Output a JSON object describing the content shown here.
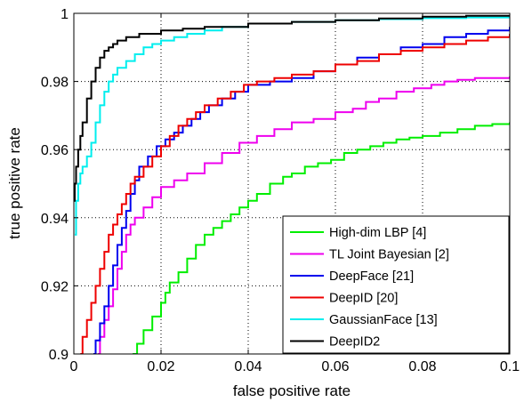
{
  "chart_data": {
    "type": "line",
    "title": "",
    "xlabel": "false positive rate",
    "ylabel": "true positive rate",
    "xlim": [
      0,
      0.1
    ],
    "ylim": [
      0.9,
      1.0
    ],
    "grid": true,
    "grid_style": "dotted",
    "legend_placement": "bottom-right",
    "x_ticks": [
      {
        "value": 0,
        "label": "0"
      },
      {
        "value": 0.02,
        "label": "0.02"
      },
      {
        "value": 0.04,
        "label": "0.04"
      },
      {
        "value": 0.06,
        "label": "0.06"
      },
      {
        "value": 0.08,
        "label": "0.08"
      },
      {
        "value": 0.1,
        "label": "0.1"
      }
    ],
    "y_ticks": [
      {
        "value": 0.9,
        "label": "0.9"
      },
      {
        "value": 0.92,
        "label": "0.92"
      },
      {
        "value": 0.94,
        "label": "0.94"
      },
      {
        "value": 0.96,
        "label": "0.96"
      },
      {
        "value": 0.98,
        "label": "0.98"
      },
      {
        "value": 1.0,
        "label": "1"
      }
    ],
    "series": [
      {
        "name": "High-dim LBP [4]",
        "color": "#00ee00",
        "points": [
          [
            0.0135,
            0.9
          ],
          [
            0.0145,
            0.903
          ],
          [
            0.016,
            0.907
          ],
          [
            0.018,
            0.911
          ],
          [
            0.02,
            0.915
          ],
          [
            0.021,
            0.918
          ],
          [
            0.022,
            0.921
          ],
          [
            0.024,
            0.924
          ],
          [
            0.026,
            0.928
          ],
          [
            0.028,
            0.932
          ],
          [
            0.03,
            0.935
          ],
          [
            0.032,
            0.937
          ],
          [
            0.034,
            0.939
          ],
          [
            0.036,
            0.941
          ],
          [
            0.038,
            0.943
          ],
          [
            0.04,
            0.945
          ],
          [
            0.042,
            0.947
          ],
          [
            0.045,
            0.95
          ],
          [
            0.048,
            0.952
          ],
          [
            0.05,
            0.953
          ],
          [
            0.053,
            0.955
          ],
          [
            0.056,
            0.956
          ],
          [
            0.059,
            0.957
          ],
          [
            0.062,
            0.959
          ],
          [
            0.065,
            0.96
          ],
          [
            0.068,
            0.961
          ],
          [
            0.071,
            0.962
          ],
          [
            0.074,
            0.963
          ],
          [
            0.077,
            0.9635
          ],
          [
            0.08,
            0.964
          ],
          [
            0.084,
            0.965
          ],
          [
            0.088,
            0.966
          ],
          [
            0.092,
            0.967
          ],
          [
            0.096,
            0.9675
          ],
          [
            0.1,
            0.968
          ]
        ]
      },
      {
        "name": "TL Joint Bayesian    [2]",
        "color": "#ee00ee",
        "points": [
          [
            0.0055,
            0.9
          ],
          [
            0.006,
            0.905
          ],
          [
            0.007,
            0.91
          ],
          [
            0.008,
            0.914
          ],
          [
            0.009,
            0.919
          ],
          [
            0.01,
            0.925
          ],
          [
            0.011,
            0.93
          ],
          [
            0.012,
            0.935
          ],
          [
            0.013,
            0.938
          ],
          [
            0.014,
            0.94
          ],
          [
            0.016,
            0.943
          ],
          [
            0.018,
            0.946
          ],
          [
            0.02,
            0.949
          ],
          [
            0.023,
            0.951
          ],
          [
            0.026,
            0.953
          ],
          [
            0.03,
            0.956
          ],
          [
            0.034,
            0.959
          ],
          [
            0.038,
            0.962
          ],
          [
            0.042,
            0.964
          ],
          [
            0.046,
            0.966
          ],
          [
            0.05,
            0.968
          ],
          [
            0.055,
            0.969
          ],
          [
            0.06,
            0.971
          ],
          [
            0.064,
            0.972
          ],
          [
            0.067,
            0.974
          ],
          [
            0.07,
            0.975
          ],
          [
            0.074,
            0.977
          ],
          [
            0.078,
            0.978
          ],
          [
            0.082,
            0.979
          ],
          [
            0.085,
            0.98
          ],
          [
            0.088,
            0.9805
          ],
          [
            0.092,
            0.981
          ],
          [
            0.096,
            0.981
          ],
          [
            0.1,
            0.9815
          ]
        ]
      },
      {
        "name": "DeepFace [21]",
        "color": "#0000ee",
        "points": [
          [
            0.0045,
            0.9
          ],
          [
            0.005,
            0.904
          ],
          [
            0.006,
            0.909
          ],
          [
            0.007,
            0.914
          ],
          [
            0.008,
            0.92
          ],
          [
            0.009,
            0.926
          ],
          [
            0.01,
            0.932
          ],
          [
            0.011,
            0.937
          ],
          [
            0.012,
            0.942
          ],
          [
            0.013,
            0.947
          ],
          [
            0.014,
            0.951
          ],
          [
            0.015,
            0.955
          ],
          [
            0.017,
            0.958
          ],
          [
            0.019,
            0.961
          ],
          [
            0.021,
            0.963
          ],
          [
            0.023,
            0.965
          ],
          [
            0.025,
            0.967
          ],
          [
            0.027,
            0.969
          ],
          [
            0.029,
            0.971
          ],
          [
            0.031,
            0.973
          ],
          [
            0.034,
            0.975
          ],
          [
            0.037,
            0.977
          ],
          [
            0.04,
            0.979
          ],
          [
            0.045,
            0.98
          ],
          [
            0.05,
            0.981
          ],
          [
            0.055,
            0.983
          ],
          [
            0.06,
            0.985
          ],
          [
            0.065,
            0.987
          ],
          [
            0.07,
            0.988
          ],
          [
            0.075,
            0.99
          ],
          [
            0.08,
            0.991
          ],
          [
            0.085,
            0.993
          ],
          [
            0.09,
            0.994
          ],
          [
            0.095,
            0.995
          ],
          [
            0.1,
            0.996
          ]
        ]
      },
      {
        "name": "DeepID [20]",
        "color": "#ee0000",
        "points": [
          [
            0.0015,
            0.9
          ],
          [
            0.002,
            0.905
          ],
          [
            0.003,
            0.91
          ],
          [
            0.004,
            0.915
          ],
          [
            0.005,
            0.92
          ],
          [
            0.006,
            0.925
          ],
          [
            0.007,
            0.93
          ],
          [
            0.008,
            0.935
          ],
          [
            0.009,
            0.938
          ],
          [
            0.01,
            0.941
          ],
          [
            0.011,
            0.944
          ],
          [
            0.012,
            0.947
          ],
          [
            0.013,
            0.95
          ],
          [
            0.014,
            0.952
          ],
          [
            0.016,
            0.955
          ],
          [
            0.018,
            0.958
          ],
          [
            0.02,
            0.961
          ],
          [
            0.022,
            0.964
          ],
          [
            0.024,
            0.967
          ],
          [
            0.026,
            0.969
          ],
          [
            0.028,
            0.971
          ],
          [
            0.03,
            0.973
          ],
          [
            0.033,
            0.975
          ],
          [
            0.036,
            0.977
          ],
          [
            0.039,
            0.979
          ],
          [
            0.042,
            0.98
          ],
          [
            0.046,
            0.981
          ],
          [
            0.05,
            0.982
          ],
          [
            0.055,
            0.983
          ],
          [
            0.06,
            0.985
          ],
          [
            0.065,
            0.986
          ],
          [
            0.07,
            0.988
          ],
          [
            0.075,
            0.989
          ],
          [
            0.08,
            0.99
          ],
          [
            0.085,
            0.991
          ],
          [
            0.09,
            0.992
          ],
          [
            0.095,
            0.993
          ],
          [
            0.1,
            0.994
          ]
        ]
      },
      {
        "name": "GaussianFace [13]",
        "color": "#00eeee",
        "points": [
          [
            0.0002,
            0.935
          ],
          [
            0.0005,
            0.945
          ],
          [
            0.001,
            0.95
          ],
          [
            0.0015,
            0.953
          ],
          [
            0.002,
            0.955
          ],
          [
            0.003,
            0.958
          ],
          [
            0.004,
            0.962
          ],
          [
            0.005,
            0.968
          ],
          [
            0.006,
            0.973
          ],
          [
            0.007,
            0.977
          ],
          [
            0.008,
            0.98
          ],
          [
            0.009,
            0.982
          ],
          [
            0.01,
            0.984
          ],
          [
            0.012,
            0.986
          ],
          [
            0.014,
            0.988
          ],
          [
            0.016,
            0.99
          ],
          [
            0.018,
            0.991
          ],
          [
            0.02,
            0.992
          ],
          [
            0.023,
            0.993
          ],
          [
            0.026,
            0.994
          ],
          [
            0.03,
            0.995
          ],
          [
            0.034,
            0.996
          ],
          [
            0.04,
            0.997
          ],
          [
            0.05,
            0.9975
          ],
          [
            0.06,
            0.998
          ],
          [
            0.07,
            0.9983
          ],
          [
            0.08,
            0.9986
          ],
          [
            0.09,
            0.9988
          ],
          [
            0.1,
            0.999
          ]
        ]
      },
      {
        "name": "DeepID2",
        "color": "#000000",
        "points": [
          [
            0.0,
            0.945
          ],
          [
            0.0002,
            0.95
          ],
          [
            0.0005,
            0.955
          ],
          [
            0.001,
            0.96
          ],
          [
            0.0015,
            0.964
          ],
          [
            0.002,
            0.968
          ],
          [
            0.003,
            0.975
          ],
          [
            0.004,
            0.98
          ],
          [
            0.005,
            0.984
          ],
          [
            0.006,
            0.987
          ],
          [
            0.007,
            0.989
          ],
          [
            0.008,
            0.99
          ],
          [
            0.009,
            0.991
          ],
          [
            0.01,
            0.992
          ],
          [
            0.012,
            0.993
          ],
          [
            0.015,
            0.994
          ],
          [
            0.02,
            0.995
          ],
          [
            0.025,
            0.9955
          ],
          [
            0.03,
            0.996
          ],
          [
            0.04,
            0.997
          ],
          [
            0.05,
            0.9975
          ],
          [
            0.06,
            0.998
          ],
          [
            0.07,
            0.9985
          ],
          [
            0.08,
            0.999
          ],
          [
            0.09,
            0.9993
          ],
          [
            0.1,
            0.9995
          ]
        ]
      }
    ]
  }
}
